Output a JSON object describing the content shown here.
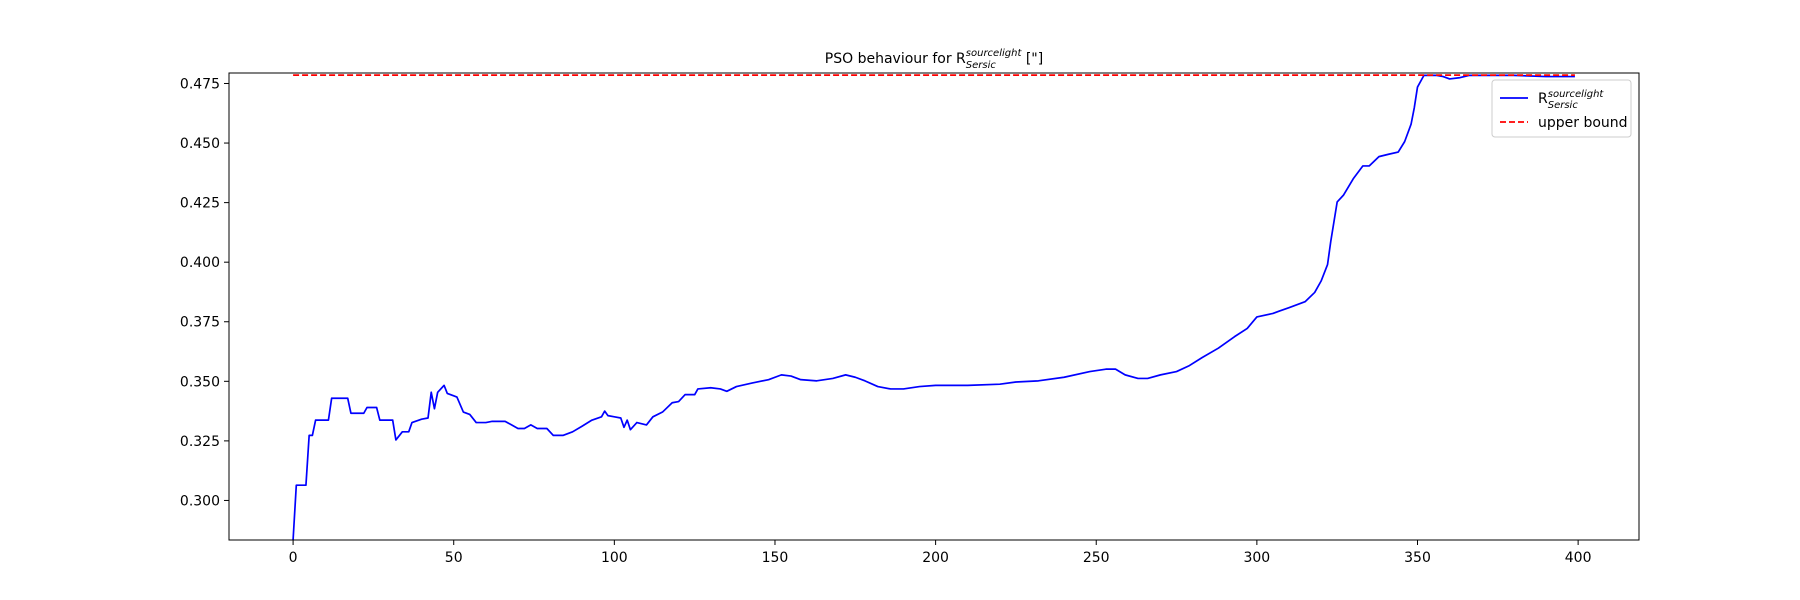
{
  "chart_data": {
    "type": "line",
    "title": {
      "text": "PSO behaviour for R",
      "sub": "Sersic",
      "sup": "sourcelight",
      "suffix": " [\"]"
    },
    "xlim": [
      -19.95,
      418.95
    ],
    "ylim": [
      0.2834,
      0.4794
    ],
    "xticks": [
      0,
      50,
      100,
      150,
      200,
      250,
      300,
      350,
      400
    ],
    "yticks": [
      {
        "value": 0.3,
        "label": "0.300"
      },
      0.325,
      {
        "value": 0.35,
        "label": "0.350"
      },
      0.375,
      {
        "value": 0.4,
        "label": "0.400"
      },
      0.425,
      {
        "value": 0.45,
        "label": "0.450"
      },
      0.475
    ],
    "legend": "upper right",
    "series": [
      {
        "name": "R",
        "name_sub": "Sersic",
        "name_sup": "sourcelight",
        "color": "#0000ff",
        "linestyle": "solid",
        "x": [
          0,
          1,
          4,
          5,
          6,
          7,
          11,
          12,
          17,
          18,
          22,
          23,
          26,
          27,
          31,
          32,
          34,
          36,
          37,
          40,
          42,
          43,
          44,
          45,
          47,
          48,
          50,
          51,
          53,
          55,
          57,
          60,
          62,
          66,
          68,
          70,
          72,
          74,
          76,
          79,
          81,
          84,
          87,
          90,
          93,
          96,
          97,
          98,
          100,
          102,
          103,
          104,
          105,
          107,
          110,
          112,
          115,
          118,
          120,
          122,
          125,
          126,
          130,
          133,
          135,
          138,
          143,
          148,
          152,
          155,
          158,
          163,
          168,
          172,
          175,
          178,
          182,
          186,
          190,
          195,
          200,
          210,
          220,
          225,
          232,
          240,
          248,
          253,
          256,
          259,
          263,
          266,
          270,
          275,
          279,
          283,
          288,
          293,
          297,
          300,
          305,
          307,
          310,
          315,
          318,
          320,
          322,
          323,
          325,
          327,
          330,
          333,
          335,
          338,
          341,
          344,
          346,
          348,
          349,
          350,
          352,
          356,
          358,
          360,
          363,
          366,
          370,
          380,
          390,
          399
        ],
        "values": [
          0.2835,
          0.3064,
          0.3064,
          0.3273,
          0.3273,
          0.3337,
          0.3337,
          0.3429,
          0.3429,
          0.3366,
          0.3366,
          0.339,
          0.339,
          0.3337,
          0.3337,
          0.3254,
          0.3288,
          0.3288,
          0.3327,
          0.3341,
          0.3346,
          0.3454,
          0.3385,
          0.3454,
          0.3483,
          0.3449,
          0.3439,
          0.3434,
          0.3371,
          0.3361,
          0.3327,
          0.3327,
          0.3332,
          0.3332,
          0.3317,
          0.3302,
          0.3302,
          0.3317,
          0.3302,
          0.3302,
          0.3273,
          0.3273,
          0.3288,
          0.3312,
          0.3337,
          0.3351,
          0.3375,
          0.3356,
          0.3351,
          0.3346,
          0.3307,
          0.3337,
          0.3297,
          0.3327,
          0.3317,
          0.3351,
          0.3371,
          0.341,
          0.3415,
          0.3444,
          0.3444,
          0.3468,
          0.3473,
          0.3468,
          0.3458,
          0.3478,
          0.3493,
          0.3507,
          0.3527,
          0.3522,
          0.3507,
          0.3502,
          0.3512,
          0.3527,
          0.3517,
          0.3502,
          0.3478,
          0.3468,
          0.3468,
          0.3478,
          0.3483,
          0.3483,
          0.3488,
          0.3497,
          0.3502,
          0.3517,
          0.3541,
          0.3551,
          0.3551,
          0.3527,
          0.3512,
          0.3512,
          0.3527,
          0.3541,
          0.3566,
          0.36,
          0.3639,
          0.3687,
          0.3722,
          0.377,
          0.3785,
          0.3795,
          0.3809,
          0.3834,
          0.3873,
          0.3921,
          0.399,
          0.4087,
          0.4253,
          0.4282,
          0.435,
          0.4404,
          0.4404,
          0.4443,
          0.4453,
          0.4462,
          0.4506,
          0.4579,
          0.4648,
          0.4735,
          0.4784,
          0.4784,
          0.4779,
          0.4769,
          0.4774,
          0.4784,
          0.4784,
          0.4784,
          0.4779,
          0.4779
        ]
      },
      {
        "name": "upper bound",
        "color": "#ff0000",
        "linestyle": "dashed",
        "x": [
          0,
          399
        ],
        "values": [
          0.4785,
          0.4785
        ]
      }
    ]
  }
}
